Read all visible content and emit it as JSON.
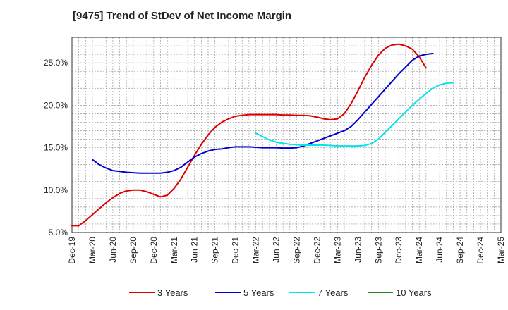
{
  "chart_data": {
    "type": "line",
    "title": "[9475]  Trend of StDev of Net Income Margin",
    "xlabel": "",
    "ylabel": "",
    "x_tick_labels": [
      "Dec-19",
      "Mar-20",
      "Jun-20",
      "Sep-20",
      "Dec-20",
      "Mar-21",
      "Jun-21",
      "Sep-21",
      "Dec-21",
      "Mar-22",
      "Jun-22",
      "Sep-22",
      "Dec-22",
      "Mar-23",
      "Jun-23",
      "Sep-23",
      "Dec-23",
      "Mar-24",
      "Jun-24",
      "Sep-24",
      "Dec-24",
      "Mar-25"
    ],
    "y_tick_labels": [
      "5.0%",
      "10.0%",
      "15.0%",
      "20.0%",
      "25.0%"
    ],
    "y_ticks": [
      5,
      10,
      15,
      20,
      25
    ],
    "ylim": [
      5,
      28
    ],
    "grid": true,
    "legend_position": "bottom",
    "series": [
      {
        "name": "3 Years",
        "color": "#dd0000",
        "start": "Dec-19",
        "values": [
          5.8,
          5.8,
          6.4,
          7.1,
          7.8,
          8.5,
          9.1,
          9.6,
          9.9,
          10.0,
          10.0,
          9.8,
          9.5,
          9.2,
          9.4,
          10.2,
          11.3,
          12.7,
          14.1,
          15.4,
          16.5,
          17.4,
          18.0,
          18.4,
          18.7,
          18.8,
          18.9,
          18.9,
          18.9,
          18.9,
          18.9,
          18.85,
          18.85,
          18.8,
          18.8,
          18.75,
          18.6,
          18.4,
          18.3,
          18.4,
          19.0,
          20.2,
          21.7,
          23.3,
          24.7,
          25.9,
          26.7,
          27.1,
          27.2,
          27.0,
          26.6,
          25.7,
          24.4
        ]
      },
      {
        "name": "5 Years",
        "color": "#0000cc",
        "start": "Mar-20",
        "values": [
          13.6,
          13.0,
          12.6,
          12.3,
          12.2,
          12.1,
          12.05,
          12.0,
          12.0,
          12.0,
          12.0,
          12.1,
          12.3,
          12.7,
          13.3,
          13.9,
          14.3,
          14.6,
          14.8,
          14.85,
          15.0,
          15.1,
          15.1,
          15.1,
          15.05,
          15.0,
          15.0,
          15.0,
          14.95,
          14.95,
          15.0,
          15.2,
          15.5,
          15.8,
          16.1,
          16.4,
          16.7,
          17.0,
          17.5,
          18.3,
          19.2,
          20.1,
          21.0,
          21.9,
          22.8,
          23.7,
          24.5,
          25.3,
          25.8,
          26.0,
          26.1
        ]
      },
      {
        "name": "7 Years",
        "color": "#00e5ee",
        "start": "Mar-22",
        "values": [
          16.7,
          16.3,
          15.9,
          15.65,
          15.5,
          15.4,
          15.35,
          15.3,
          15.3,
          15.3,
          15.3,
          15.25,
          15.2,
          15.2,
          15.2,
          15.2,
          15.25,
          15.5,
          16.0,
          16.8,
          17.6,
          18.4,
          19.2,
          20.0,
          20.7,
          21.4,
          22.0,
          22.4,
          22.6,
          22.65
        ]
      },
      {
        "name": "10 Years",
        "color": "#228b22",
        "start": "Dec-24",
        "values": []
      }
    ]
  }
}
